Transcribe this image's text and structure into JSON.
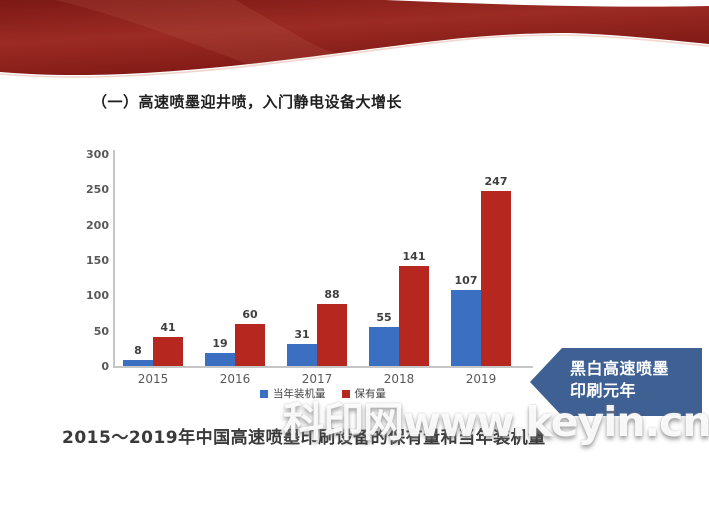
{
  "slide": {
    "title": "（一）高速喷墨迎井喷，入门静电设备大增长",
    "caption": "2015～2019年中国高速喷墨印刷设备的保有量和当年装机量",
    "watermark": "科印网www.keyin.cn",
    "badge": {
      "line1": "黑白高速喷墨",
      "line2": "印刷元年",
      "color": "#3F6093"
    },
    "banner_color": "#8E2420"
  },
  "chart_data": {
    "type": "bar",
    "categories": [
      "2015",
      "2016",
      "2017",
      "2018",
      "2019"
    ],
    "series": [
      {
        "name": "当年装机量",
        "color": "#3A6FC2",
        "values": [
          8,
          19,
          31,
          55,
          107
        ]
      },
      {
        "name": "保有量",
        "color": "#B5271F",
        "values": [
          41,
          60,
          88,
          141,
          247
        ]
      }
    ],
    "title": "",
    "xlabel": "",
    "ylabel": "",
    "ylim": [
      0,
      300
    ],
    "yticks": [
      0,
      50,
      100,
      150,
      200,
      250,
      300
    ],
    "grid": false,
    "legend_position": "bottom",
    "data_labels": true
  }
}
